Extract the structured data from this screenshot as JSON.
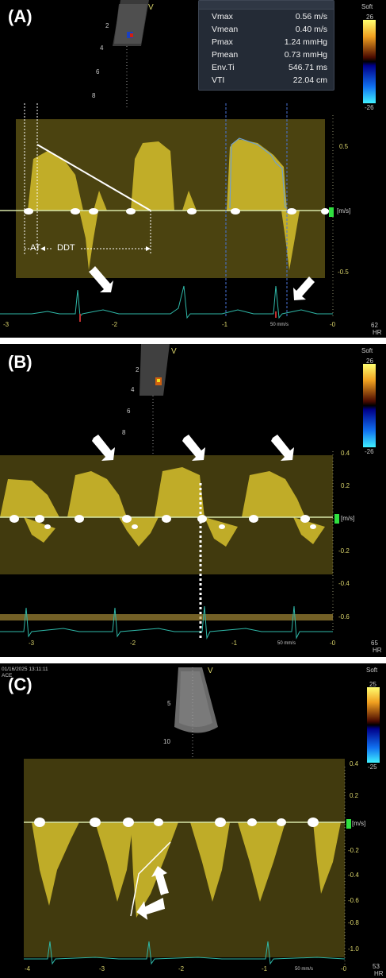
{
  "panels": [
    {
      "label": "(A)",
      "probe_mark": "V",
      "color_map": "Soft",
      "scale_top": "26",
      "scale_bottom": "-26",
      "depth_ticks": [
        "2",
        "4",
        "6",
        "8"
      ],
      "velocity_ticks": [
        "0.5",
        "-0.5"
      ],
      "unit": "[m/s]",
      "time_ticks": [
        "-3",
        "-2",
        "-1",
        "-0"
      ],
      "sweep": "50 mm/s",
      "hr_value": "62",
      "hr_label": "HR",
      "annotations": {
        "at": "AT",
        "ddt": "DDT"
      },
      "measurements": [
        {
          "name": "Vmax",
          "value": "0.56 m/s"
        },
        {
          "name": "Vmean",
          "value": "0.40 m/s"
        },
        {
          "name": "Pmax",
          "value": "1.24 mmHg"
        },
        {
          "name": "Pmean",
          "value": "0.73 mmHg"
        },
        {
          "name": "Env.Ti",
          "value": "546.71 ms"
        },
        {
          "name": "VTI",
          "value": "22.04 cm"
        }
      ]
    },
    {
      "label": "(B)",
      "probe_mark": "V",
      "color_map": "Soft",
      "scale_top": "26",
      "scale_bottom": "-26",
      "depth_ticks": [
        "2",
        "4",
        "6",
        "8"
      ],
      "velocity_ticks": [
        "0.4",
        "0.2",
        "-0.2",
        "-0.4",
        "-0.6"
      ],
      "unit": "[m/s]",
      "time_ticks": [
        "-3",
        "-2",
        "-1",
        "-0"
      ],
      "sweep": "50 mm/s",
      "hr_value": "65",
      "hr_label": "HR"
    },
    {
      "label": "(C)",
      "probe_mark": "V",
      "color_map": "Soft",
      "scale_top": "25",
      "scale_bottom": "-25",
      "timestamp": "01/16/2025 13:11:11",
      "preset": "ACE",
      "depth_ticks": [
        "5",
        "10"
      ],
      "velocity_ticks": [
        "0.4",
        "0.2",
        "-0.2",
        "-0.4",
        "-0.6",
        "-0.8",
        "-1.0"
      ],
      "unit": "[m/s]",
      "time_ticks": [
        "-4",
        "-3",
        "-2",
        "-1",
        "-0"
      ],
      "sweep": "50 mm/s",
      "hr_value": "53",
      "hr_label": "HR"
    }
  ],
  "colors": {
    "doppler": "#e8d23a",
    "ecg": "#2fb8a8",
    "baseline": "#d8e6a8",
    "scale_text": "#d9d36a"
  }
}
